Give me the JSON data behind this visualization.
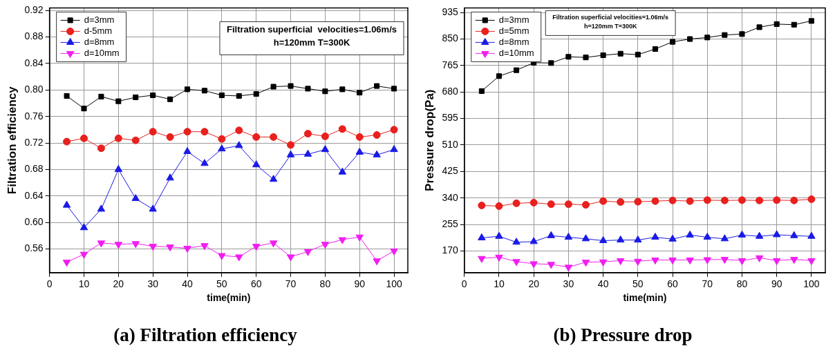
{
  "chart_data": [
    {
      "type": "line",
      "title": "(a) Filtration efficiency",
      "xlabel": "time(min)",
      "ylabel": "Filtration efficiency",
      "x": [
        5,
        10,
        15,
        20,
        25,
        30,
        35,
        40,
        45,
        50,
        55,
        60,
        65,
        70,
        75,
        80,
        85,
        90,
        95,
        100
      ],
      "series": [
        {
          "name": "d=3mm",
          "color": "#000000",
          "marker": "square",
          "values": [
            0.791,
            0.772,
            0.79,
            0.783,
            0.789,
            0.792,
            0.786,
            0.801,
            0.799,
            0.792,
            0.791,
            0.794,
            0.805,
            0.806,
            0.802,
            0.798,
            0.801,
            0.796,
            0.806,
            0.802
          ]
        },
        {
          "name": "d-5mm",
          "color": "#e8201e",
          "marker": "circle",
          "values": [
            0.722,
            0.727,
            0.712,
            0.727,
            0.724,
            0.737,
            0.729,
            0.737,
            0.737,
            0.726,
            0.739,
            0.729,
            0.729,
            0.717,
            0.734,
            0.73,
            0.741,
            0.729,
            0.732,
            0.74
          ]
        },
        {
          "name": "d=8mm",
          "color": "#1a1ae6",
          "marker": "triangle",
          "values": [
            0.626,
            0.592,
            0.62,
            0.68,
            0.636,
            0.62,
            0.667,
            0.707,
            0.689,
            0.711,
            0.716,
            0.687,
            0.665,
            0.702,
            0.703,
            0.71,
            0.676,
            0.706,
            0.702,
            0.71
          ]
        },
        {
          "name": "d=10mm",
          "color": "#f01ef0",
          "marker": "triangle-down",
          "values": [
            0.54,
            0.552,
            0.569,
            0.567,
            0.568,
            0.564,
            0.563,
            0.561,
            0.565,
            0.55,
            0.548,
            0.564,
            0.569,
            0.548,
            0.556,
            0.567,
            0.574,
            0.578,
            0.542,
            0.557
          ]
        }
      ],
      "xlim": [
        0,
        104
      ],
      "xticks": [
        0,
        10,
        20,
        30,
        40,
        50,
        60,
        70,
        80,
        90,
        100
      ],
      "ylim": [
        0.524,
        0.924
      ],
      "yticks": [
        {
          "value": 0.56,
          "label": "0.56"
        },
        {
          "value": 0.6,
          "label": "0.60"
        },
        {
          "value": 0.64,
          "label": "0.64"
        },
        {
          "value": 0.68,
          "label": "0.68"
        },
        {
          "value": 0.72,
          "label": "0.72"
        },
        {
          "value": 0.76,
          "label": "0.76"
        },
        {
          "value": 0.8,
          "label": "0.80"
        },
        {
          "value": 0.84,
          "label": "0.84"
        },
        {
          "value": 0.88,
          "label": "0.88"
        },
        {
          "value": 0.92,
          "label": "0.92"
        }
      ],
      "annotations": [
        "Filtration superficial  velocities=1.06m/s",
        "h=120mm T=300K"
      ],
      "grid": true,
      "legend": "top left",
      "line_style": "solid"
    },
    {
      "type": "line",
      "title": "(b) Pressure drop",
      "xlabel": "time(min)",
      "ylabel": "Pressure drop(Pa)",
      "x": [
        5,
        10,
        15,
        20,
        25,
        30,
        35,
        40,
        45,
        50,
        55,
        60,
        65,
        70,
        75,
        80,
        85,
        90,
        95,
        100
      ],
      "series": [
        {
          "name": "d=3mm",
          "color": "#000000",
          "marker": "square",
          "values": [
            683,
            731,
            750,
            774,
            773,
            793,
            791,
            798,
            803,
            800,
            818,
            841,
            850,
            855,
            863,
            866,
            888,
            898,
            896,
            908
          ]
        },
        {
          "name": "d=5mm",
          "color": "#e8201e",
          "marker": "circle",
          "values": [
            316,
            314,
            323,
            325,
            320,
            320,
            318,
            330,
            327,
            328,
            330,
            332,
            330,
            333,
            332,
            333,
            332,
            333,
            332,
            336
          ]
        },
        {
          "name": "d=8mm",
          "color": "#1a1ae6",
          "marker": "triangle",
          "values": [
            212,
            217,
            198,
            200,
            219,
            214,
            209,
            203,
            205,
            205,
            214,
            208,
            221,
            214,
            209,
            221,
            217,
            222,
            219,
            217
          ]
        },
        {
          "name": "d=10mm",
          "color": "#f01ef0",
          "marker": "triangle-down",
          "values": [
            146,
            150,
            136,
            129,
            127,
            118,
            134,
            135,
            139,
            137,
            141,
            141,
            141,
            142,
            143,
            139,
            148,
            139,
            143,
            139
          ]
        }
      ],
      "xlim": [
        0,
        104
      ],
      "xticks": [
        0,
        10,
        20,
        30,
        40,
        50,
        60,
        70,
        80,
        90,
        100
      ],
      "ylim": [
        100,
        950
      ],
      "yticks": [
        170,
        255,
        340,
        425,
        510,
        595,
        680,
        765,
        850,
        935
      ],
      "annotations": [
        "Filtration superficial velocities=1.06m/s",
        "h=120mm T=300K"
      ],
      "grid": true,
      "legend": "top left",
      "line_style": "solid"
    }
  ]
}
